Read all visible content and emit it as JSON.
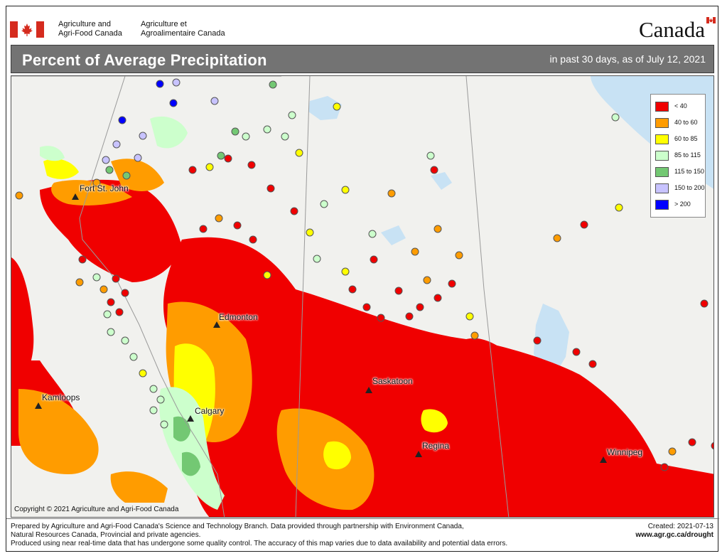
{
  "header": {
    "department_en_line1": "Agriculture and",
    "department_en_line2": "Agri-Food Canada",
    "department_fr_line1": "Agriculture et",
    "department_fr_line2": "Agroalimentaire Canada",
    "wordmark": "Canada",
    "colors": {
      "flag_red": "#d52b1e"
    }
  },
  "title_bar": {
    "title": "Percent of Average Precipitation",
    "subtitle": "in past 30 days, as of July 12, 2021"
  },
  "map": {
    "cities": [
      {
        "name": "Fort St. John"
      },
      {
        "name": "Edmonton"
      },
      {
        "name": "Kamloops"
      },
      {
        "name": "Calgary"
      },
      {
        "name": "Saskatoon"
      },
      {
        "name": "Regina"
      },
      {
        "name": "Winnipeg"
      }
    ],
    "copyright": "Copyright © 2021 Agriculture and Agri-Food Canada",
    "colors": {
      "land": "#f1f1ee",
      "water": "#c8e2f4",
      "boundary": "#9a9a9a"
    }
  },
  "legend": {
    "items": [
      {
        "label": "< 40",
        "color": "#f00000"
      },
      {
        "label": "40 to 60",
        "color": "#ff9c00"
      },
      {
        "label": "60 to 85",
        "color": "#ffff00"
      },
      {
        "label": "85 to 115",
        "color": "#ccffcc"
      },
      {
        "label": "115 to 150",
        "color": "#73c873"
      },
      {
        "label": "150 to 200",
        "color": "#c8c3ff"
      },
      {
        "label": "> 200",
        "color": "#0000ff"
      }
    ]
  },
  "footer": {
    "line1": "Prepared by Agriculture and Agri-Food Canada's Science and Technology Branch. Data provided through partnership with Environment Canada,",
    "line2": "Natural Resources Canada, Provincial and private agencies.",
    "line3": "Produced using near real-time data that has undergone some quality control. The accuracy of this map varies due to data availability and potential data errors.",
    "created": "Created: 2021-07-13",
    "url": "www.agr.gc.ca/drought"
  }
}
